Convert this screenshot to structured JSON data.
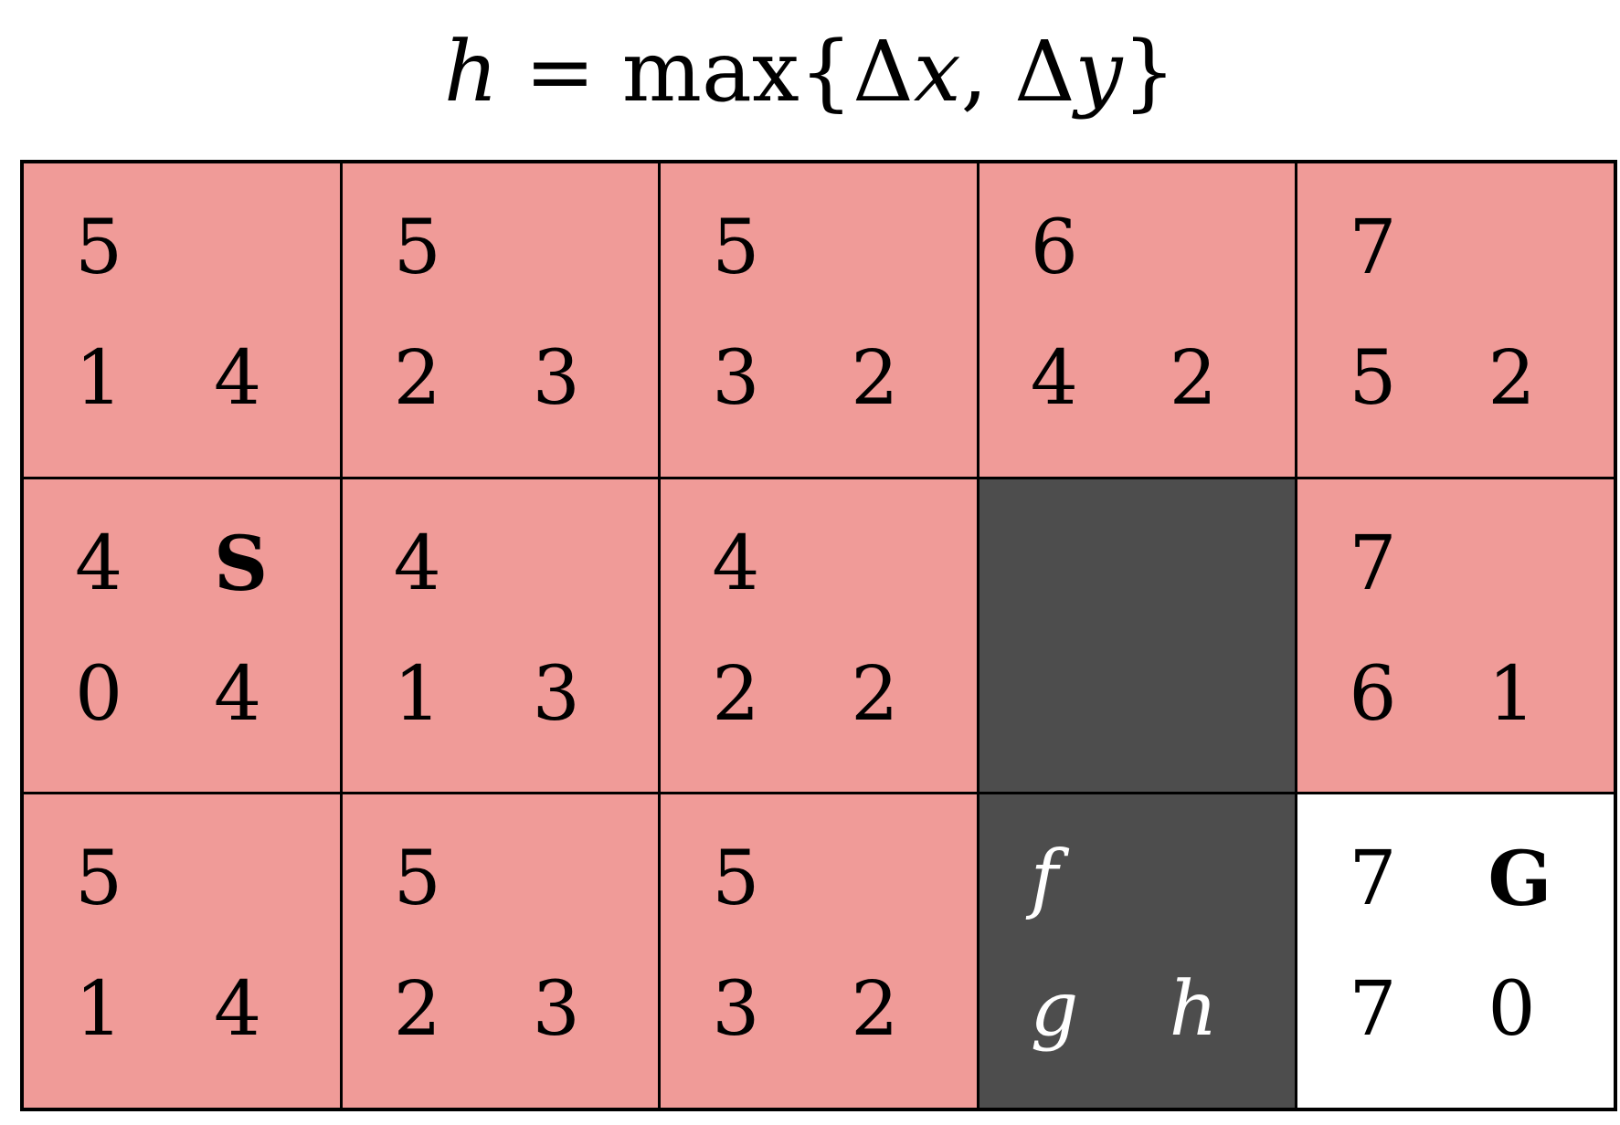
{
  "title": {
    "lhs": "h",
    "eq": " = max{Δ",
    "x": "x",
    "sep": ", Δ",
    "y": "y",
    "close": "}"
  },
  "colors": {
    "open": "#f09b98",
    "wall": "#4d4d4d",
    "goal": "#ffffff"
  },
  "grid": {
    "rows": [
      [
        {
          "type": "open",
          "f": "5",
          "g": "1",
          "h": "4",
          "mark": ""
        },
        {
          "type": "open",
          "f": "5",
          "g": "2",
          "h": "3",
          "mark": ""
        },
        {
          "type": "open",
          "f": "5",
          "g": "3",
          "h": "2",
          "mark": ""
        },
        {
          "type": "open",
          "f": "6",
          "g": "4",
          "h": "2",
          "mark": ""
        },
        {
          "type": "open",
          "f": "7",
          "g": "5",
          "h": "2",
          "mark": ""
        }
      ],
      [
        {
          "type": "open",
          "f": "4",
          "g": "0",
          "h": "4",
          "mark": "S"
        },
        {
          "type": "open",
          "f": "4",
          "g": "1",
          "h": "3",
          "mark": ""
        },
        {
          "type": "open",
          "f": "4",
          "g": "2",
          "h": "2",
          "mark": ""
        },
        {
          "type": "wall",
          "f": "",
          "g": "",
          "h": "",
          "mark": ""
        },
        {
          "type": "open",
          "f": "7",
          "g": "6",
          "h": "1",
          "mark": ""
        }
      ],
      [
        {
          "type": "open",
          "f": "5",
          "g": "1",
          "h": "4",
          "mark": ""
        },
        {
          "type": "open",
          "f": "5",
          "g": "2",
          "h": "3",
          "mark": ""
        },
        {
          "type": "open",
          "f": "5",
          "g": "3",
          "h": "2",
          "mark": ""
        },
        {
          "type": "wall",
          "f": "f",
          "g": "g",
          "h": "h",
          "mark": ""
        },
        {
          "type": "goal",
          "f": "7",
          "g": "7",
          "h": "0",
          "mark": "G"
        }
      ]
    ]
  }
}
